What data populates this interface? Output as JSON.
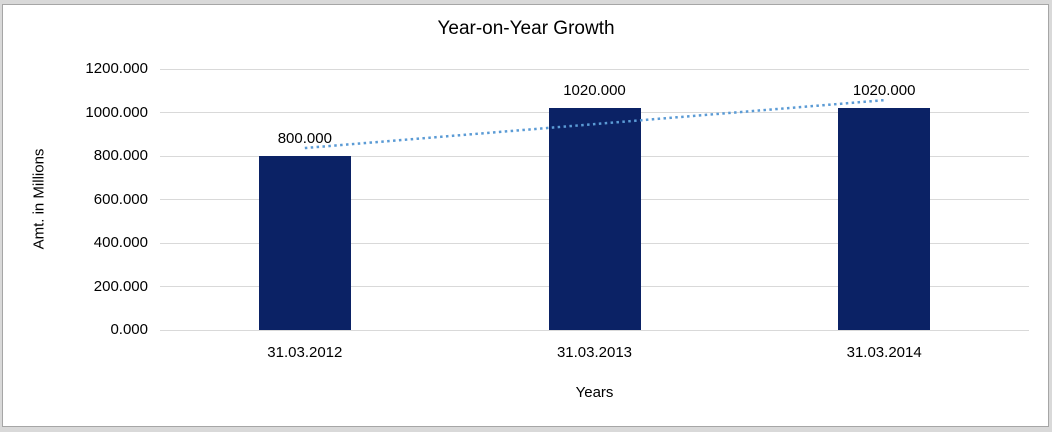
{
  "chart_data": {
    "type": "bar",
    "title": "Year-on-Year Growth",
    "xlabel": "Years",
    "ylabel": "Amt. in Millions",
    "categories": [
      "31.03.2012",
      "31.03.2013",
      "31.03.2014"
    ],
    "values": [
      800,
      1020,
      1020
    ],
    "data_labels": [
      "800.000",
      "1020.000",
      "1020.000"
    ],
    "ylim": [
      0,
      1200
    ],
    "ytick_step": 200,
    "ytick_labels": [
      "0.000",
      "200.000",
      "400.000",
      "600.000",
      "800.000",
      "1000.000",
      "1200.000"
    ],
    "grid": true,
    "legend": false,
    "trendline": {
      "type": "linear",
      "style": "dotted"
    }
  },
  "colors": {
    "bar": "#0B2265",
    "trendline": "#5B9BD5",
    "gridline": "#D9D9D9",
    "text": "#000000",
    "frame_border": "#A6A6A6",
    "outer_background": "#D9D9D9",
    "plot_background": "#FFFFFF"
  }
}
